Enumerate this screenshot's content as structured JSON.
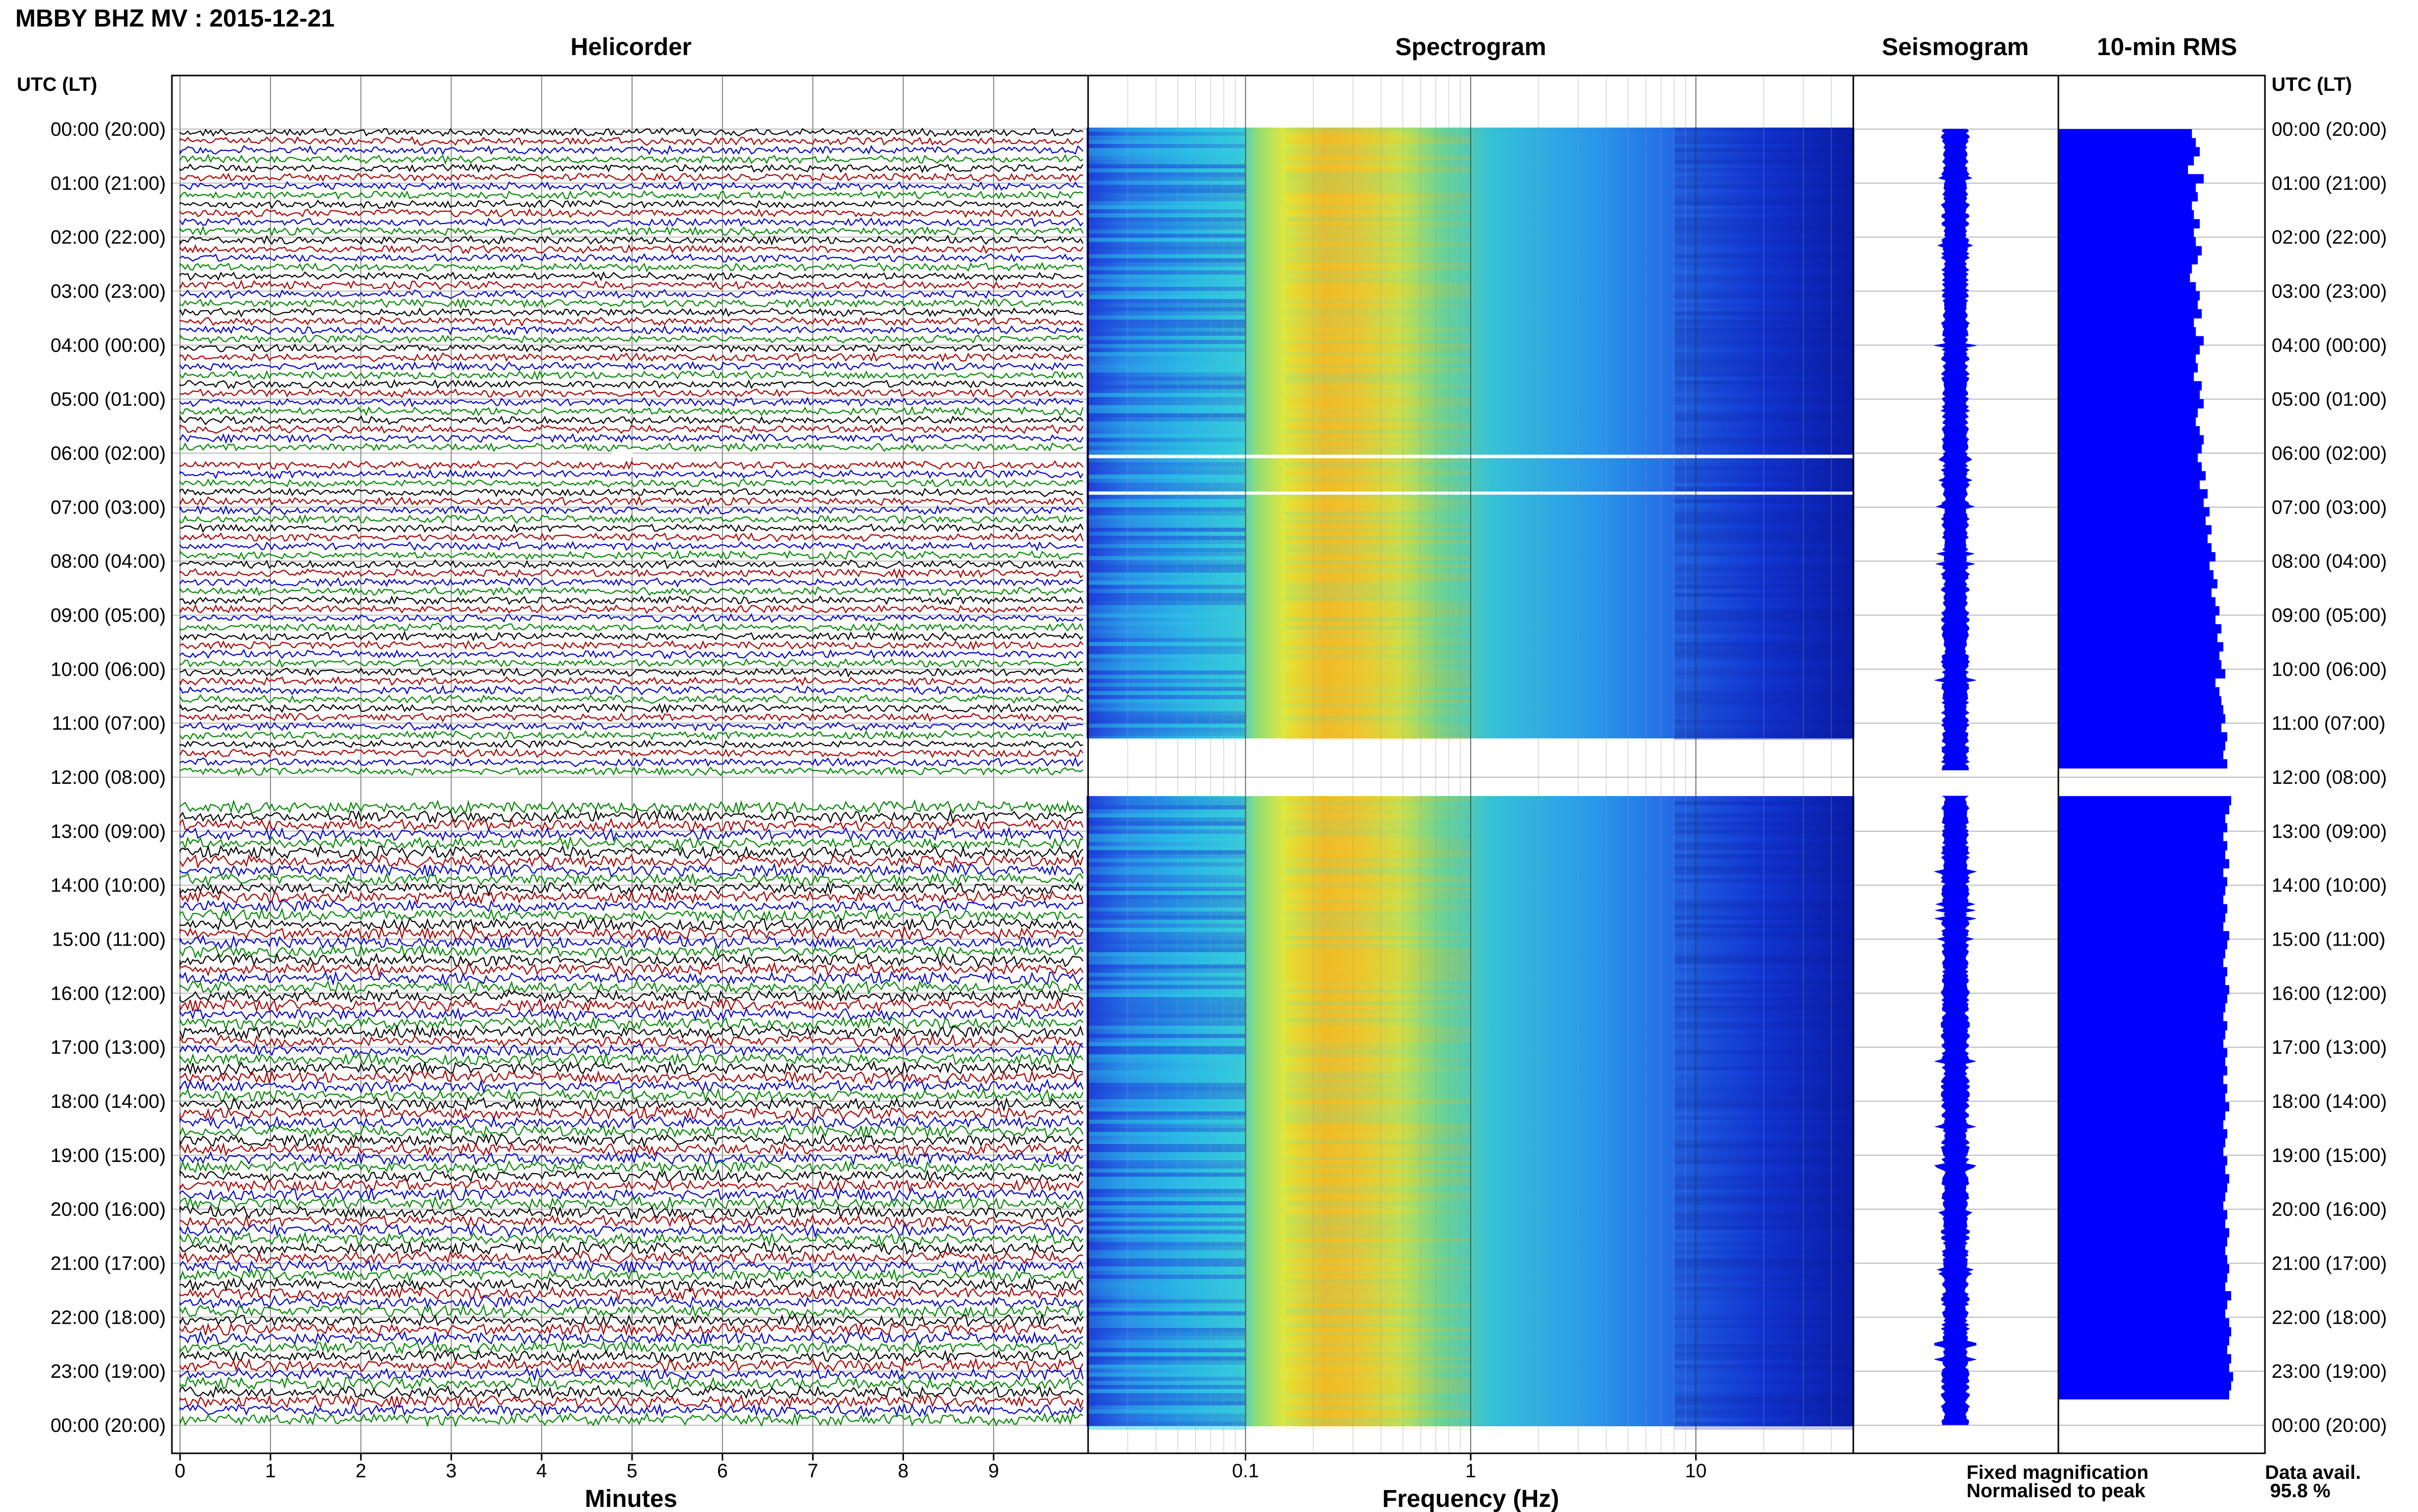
{
  "title": "MBBY BHZ MV : 2015-12-21",
  "time_axis_label": "UTC (LT)",
  "time_labels": [
    "00:00 (20:00)",
    "01:00 (21:00)",
    "02:00 (22:00)",
    "03:00 (23:00)",
    "04:00 (00:00)",
    "05:00 (01:00)",
    "06:00 (02:00)",
    "07:00 (03:00)",
    "08:00 (04:00)",
    "09:00 (05:00)",
    "10:00 (06:00)",
    "11:00 (07:00)",
    "12:00 (08:00)",
    "13:00 (09:00)",
    "14:00 (10:00)",
    "15:00 (11:00)",
    "16:00 (12:00)",
    "17:00 (13:00)",
    "18:00 (14:00)",
    "19:00 (15:00)",
    "20:00 (16:00)",
    "21:00 (17:00)",
    "22:00 (18:00)",
    "23:00 (19:00)",
    "00:00 (20:00)"
  ],
  "legend": {
    "fixed": "Fixed magnification",
    "normalised": "Normalised to peak",
    "fixed_color": "#0000ff",
    "normalised_color": "#ff0000",
    "avail_label": "Data avail.",
    "avail_value": "95.8 %"
  },
  "chart_data": [
    {
      "type": "line",
      "title": "Helicorder",
      "xlabel": "Minutes",
      "ylabel": "UTC (LT)",
      "x_ticks": [
        "0",
        "1",
        "2",
        "3",
        "4",
        "5",
        "6",
        "7",
        "8",
        "9"
      ],
      "xlim": [
        0,
        10
      ],
      "line_colors": [
        "#000000",
        "#aa0000",
        "#0000cc",
        "#008800"
      ],
      "trace_minutes_per_line": 10,
      "gaps_utc_hours": [
        [
          6.0,
          6.15
        ],
        [
          11.9,
          12.3
        ]
      ]
    },
    {
      "type": "heatmap",
      "title": "Spectrogram",
      "xlabel": "Frequency (Hz)",
      "x_scale": "log",
      "xlim": [
        0.02,
        50
      ],
      "x_ticks": [
        "0.1",
        "1",
        "10"
      ],
      "colormap": "jet",
      "peak_frequency_hz": 0.25,
      "gaps_utc_hours": [
        [
          6.0,
          6.1
        ],
        [
          6.7,
          6.75
        ],
        [
          11.9,
          12.3
        ]
      ]
    },
    {
      "type": "line",
      "title": "Seismogram",
      "line_color": "#0000ff",
      "gaps_utc_hours": [
        [
          11.9,
          12.3
        ]
      ]
    },
    {
      "type": "bar",
      "title": "10-min RMS",
      "bar_color": "#0000ff",
      "orientation": "horizontal",
      "gaps_utc_hours": [
        [
          11.9,
          12.3
        ]
      ],
      "relative_values_first_half": [
        0.68,
        0.7,
        0.72,
        0.69,
        0.66,
        0.74,
        0.7,
        0.71,
        0.68,
        0.69,
        0.72,
        0.69,
        0.7,
        0.73,
        0.71,
        0.68,
        0.67,
        0.7,
        0.72,
        0.71,
        0.73,
        0.69,
        0.7,
        0.74,
        0.72,
        0.7,
        0.71,
        0.69,
        0.73,
        0.72,
        0.74,
        0.71,
        0.7,
        0.72,
        0.74,
        0.73,
        0.71,
        0.73,
        0.75,
        0.72,
        0.76,
        0.74,
        0.77,
        0.75,
        0.78,
        0.76,
        0.78,
        0.8,
        0.77,
        0.79,
        0.81,
        0.78,
        0.8,
        0.82,
        0.8,
        0.83,
        0.81,
        0.84,
        0.82,
        0.83,
        0.85,
        0.8,
        0.82,
        0.83,
        0.84,
        0.85,
        0.83,
        0.86,
        0.85,
        0.84,
        0.86
      ],
      "relative_values_second_half": [
        0.88,
        0.87,
        0.85,
        0.86,
        0.84,
        0.86,
        0.85,
        0.87,
        0.84,
        0.86,
        0.85,
        0.84,
        0.86,
        0.85,
        0.84,
        0.87,
        0.86,
        0.85,
        0.84,
        0.86,
        0.85,
        0.87,
        0.86,
        0.85,
        0.84,
        0.86,
        0.85,
        0.84,
        0.86,
        0.85,
        0.86,
        0.84,
        0.86,
        0.85,
        0.87,
        0.85,
        0.84,
        0.86,
        0.85,
        0.84,
        0.86,
        0.85,
        0.87,
        0.86,
        0.85,
        0.84,
        0.86,
        0.85,
        0.87,
        0.86,
        0.85,
        0.86,
        0.87,
        0.86,
        0.85,
        0.88,
        0.86,
        0.85,
        0.87,
        0.88,
        0.87,
        0.86,
        0.88,
        0.87,
        0.89,
        0.88,
        0.87
      ]
    }
  ]
}
